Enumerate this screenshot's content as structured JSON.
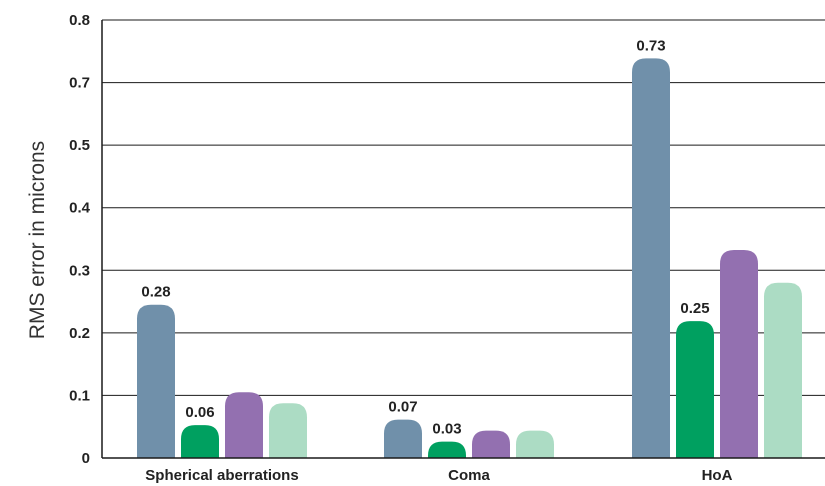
{
  "chart_data": {
    "type": "bar",
    "ylabel": "RMS error in microns",
    "xlabel": "",
    "categories": [
      "Spherical aberrations",
      "Coma",
      "HoA"
    ],
    "y_tick_labels": [
      "0",
      "0.1",
      "0.2",
      "0.3",
      "0.4",
      "0.5",
      "0.7",
      "0.8"
    ],
    "ylim": [
      0,
      0.8
    ],
    "grid": true,
    "legend": "none",
    "series": [
      {
        "values": [
          0.28,
          0.07,
          0.73
        ],
        "labels": [
          "0.28",
          "0.07",
          "0.73"
        ],
        "color": "#7090aa"
      },
      {
        "values": [
          0.06,
          0.03,
          0.25
        ],
        "labels": [
          "0.06",
          "0.03",
          "0.25"
        ],
        "color": "#00a060"
      },
      {
        "values": [
          0.12,
          0.05,
          0.38
        ],
        "labels": [
          "",
          "",
          ""
        ],
        "color": "#9370b0"
      },
      {
        "values": [
          0.1,
          0.05,
          0.32
        ],
        "labels": [
          "",
          "",
          ""
        ],
        "color": "#acdcc4"
      }
    ]
  }
}
